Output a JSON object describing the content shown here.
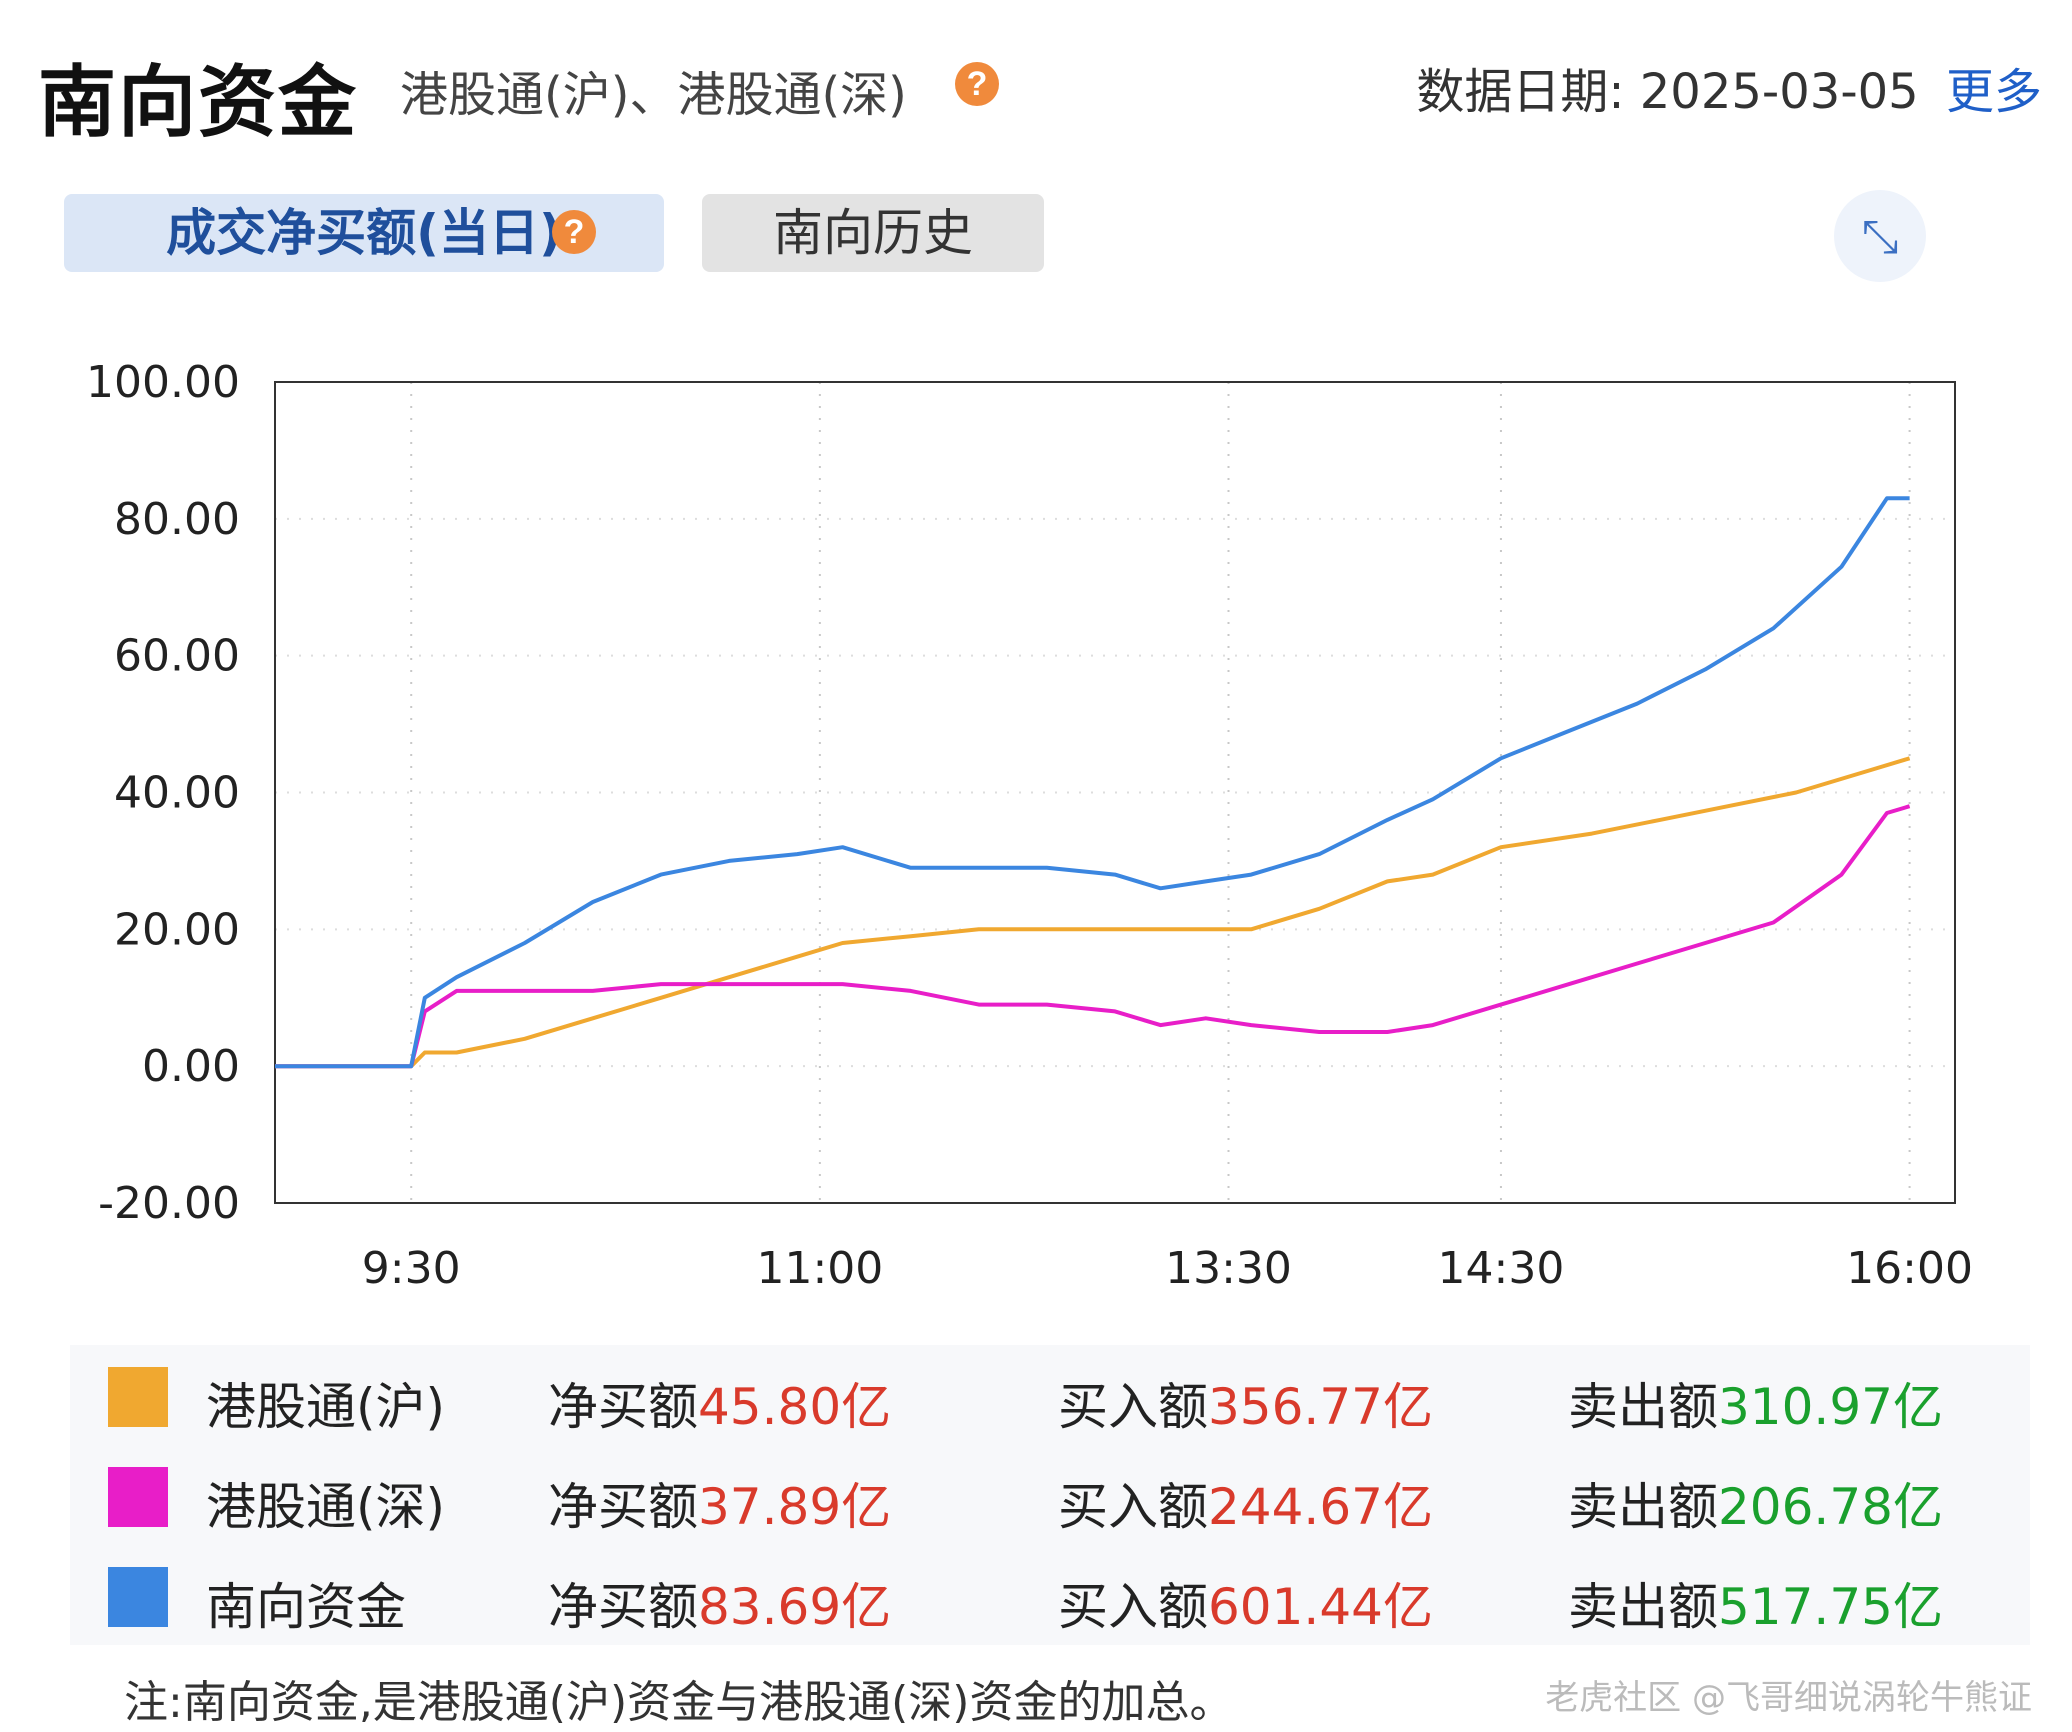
{
  "header": {
    "title": "南向资金",
    "subtitle": "港股通(沪)、港股通(深)",
    "help": "?",
    "date_label": "数据日期:",
    "date_value": "2025-03-05",
    "more": "更多"
  },
  "tabs": [
    {
      "label": "成交净买额(当日)"
    },
    {
      "label": "南向历史"
    }
  ],
  "expand_icon": "expand-icon",
  "chart_data": {
    "type": "line",
    "ylim": [
      -20,
      100
    ],
    "y_ticks": [
      "100.00",
      "80.00",
      "60.00",
      "40.00",
      "20.00",
      "0.00",
      "-20.00"
    ],
    "x_ticks": [
      "9:30",
      "11:00",
      "13:30",
      "14:30",
      "16:00"
    ],
    "x_tick_minutes": [
      0,
      90,
      180,
      240,
      330
    ],
    "x_range_minutes": [
      -30,
      340
    ],
    "grid": true,
    "series": [
      {
        "name": "港股通(沪)",
        "color": "#f0a830",
        "points": [
          [
            -30,
            0
          ],
          [
            0,
            0
          ],
          [
            3,
            2
          ],
          [
            10,
            2
          ],
          [
            25,
            4
          ],
          [
            40,
            7
          ],
          [
            55,
            10
          ],
          [
            70,
            13
          ],
          [
            85,
            16
          ],
          [
            95,
            18
          ],
          [
            110,
            19
          ],
          [
            125,
            20
          ],
          [
            140,
            20
          ],
          [
            160,
            20
          ],
          [
            175,
            20
          ],
          [
            185,
            20
          ],
          [
            200,
            23
          ],
          [
            215,
            27
          ],
          [
            225,
            28
          ],
          [
            240,
            32
          ],
          [
            260,
            34
          ],
          [
            275,
            36
          ],
          [
            290,
            38
          ],
          [
            305,
            40
          ],
          [
            320,
            43
          ],
          [
            330,
            45
          ]
        ]
      },
      {
        "name": "港股通(深)",
        "color": "#e81ec8",
        "points": [
          [
            -30,
            0
          ],
          [
            0,
            0
          ],
          [
            3,
            8
          ],
          [
            10,
            11
          ],
          [
            25,
            11
          ],
          [
            40,
            11
          ],
          [
            55,
            12
          ],
          [
            70,
            12
          ],
          [
            85,
            12
          ],
          [
            95,
            12
          ],
          [
            110,
            11
          ],
          [
            125,
            9
          ],
          [
            140,
            9
          ],
          [
            155,
            8
          ],
          [
            165,
            6
          ],
          [
            175,
            7
          ],
          [
            185,
            6
          ],
          [
            200,
            5
          ],
          [
            215,
            5
          ],
          [
            225,
            6
          ],
          [
            240,
            9
          ],
          [
            255,
            12
          ],
          [
            270,
            15
          ],
          [
            285,
            18
          ],
          [
            300,
            21
          ],
          [
            315,
            28
          ],
          [
            325,
            37
          ],
          [
            330,
            38
          ]
        ]
      },
      {
        "name": "南向资金",
        "color": "#3b86e0",
        "points": [
          [
            -30,
            0
          ],
          [
            0,
            0
          ],
          [
            3,
            10
          ],
          [
            10,
            13
          ],
          [
            25,
            18
          ],
          [
            40,
            24
          ],
          [
            55,
            28
          ],
          [
            70,
            30
          ],
          [
            85,
            31
          ],
          [
            95,
            32
          ],
          [
            110,
            29
          ],
          [
            125,
            29
          ],
          [
            140,
            29
          ],
          [
            155,
            28
          ],
          [
            165,
            26
          ],
          [
            175,
            27
          ],
          [
            185,
            28
          ],
          [
            200,
            31
          ],
          [
            215,
            36
          ],
          [
            225,
            39
          ],
          [
            240,
            45
          ],
          [
            255,
            49
          ],
          [
            270,
            53
          ],
          [
            285,
            58
          ],
          [
            300,
            64
          ],
          [
            315,
            73
          ],
          [
            325,
            83
          ],
          [
            330,
            83
          ]
        ]
      }
    ]
  },
  "legend": [
    {
      "name": "港股通(沪)",
      "color": "#f0a830",
      "net_label": "净买额",
      "net": "45.80亿",
      "buy_label": "买入额",
      "buy": "356.77亿",
      "sell_label": "卖出额",
      "sell": "310.97亿"
    },
    {
      "name": "港股通(深)",
      "color": "#e81ec8",
      "net_label": "净买额",
      "net": "37.89亿",
      "buy_label": "买入额",
      "buy": "244.67亿",
      "sell_label": "卖出额",
      "sell": "206.78亿"
    },
    {
      "name": "南向资金",
      "color": "#3b86e0",
      "net_label": "净买额",
      "net": "83.69亿",
      "buy_label": "买入额",
      "buy": "601.44亿",
      "sell_label": "卖出额",
      "sell": "517.75亿"
    }
  ],
  "note": "注:南向资金,是港股通(沪)资金与港股通(深)资金的加总。",
  "watermark": "老虎社区 @飞哥细说涡轮牛熊证"
}
